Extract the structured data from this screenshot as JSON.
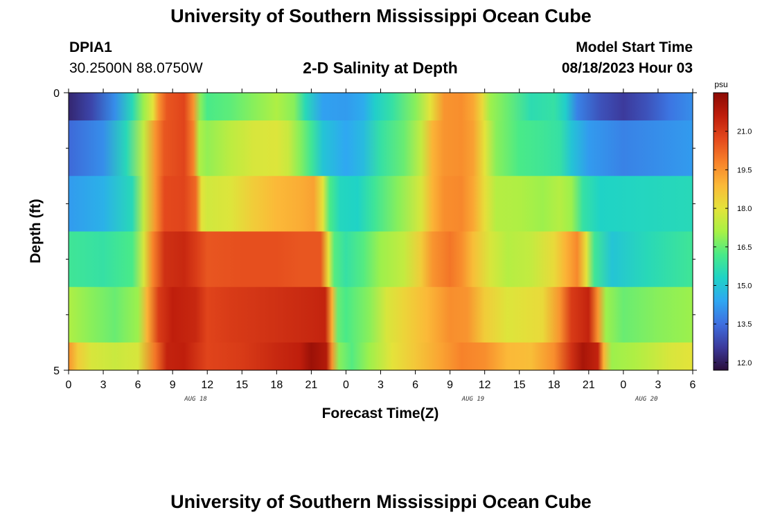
{
  "page": {
    "title": "University of Southern Mississippi Ocean Cube",
    "station_id": "DPIA1",
    "station_coords": "30.2500N  88.0750W",
    "plot_title": "2-D Salinity at Depth",
    "model_start_label": "Model Start Time",
    "model_start_value": "08/18/2023 Hour 03",
    "footer_title": "University of Southern Mississippi Ocean Cube"
  },
  "chart_data": {
    "type": "heatmap",
    "title": "2-D Salinity at Depth",
    "xlabel": "Forecast Time(Z)",
    "ylabel": "Depth (ft)",
    "colorbar_label": "psu",
    "colorbar_ticks": [
      "12.0",
      "13.5",
      "15.0",
      "16.5",
      "18.0",
      "19.5",
      "21.0"
    ],
    "colorbar_range": [
      11.7,
      22.5
    ],
    "x_tick_labels": [
      "0",
      "3",
      "6",
      "9",
      "12",
      "15",
      "18",
      "21",
      "0",
      "3",
      "6",
      "9",
      "12",
      "15",
      "18",
      "21",
      "0",
      "3",
      "6"
    ],
    "date_labels": [
      {
        "text": "AUG 18",
        "at_hour": 11
      },
      {
        "text": "AUG 19",
        "at_hour": 35
      },
      {
        "text": "AUG 20",
        "at_hour": 50
      }
    ],
    "x_range_hours": [
      0,
      54
    ],
    "y_tick_labels": [
      {
        "value": 0,
        "label": "0"
      },
      {
        "value": 5,
        "label": "5"
      }
    ],
    "y_minor_ticks": [
      1,
      2,
      3,
      4
    ],
    "y_range": [
      0,
      5
    ],
    "color_stops": [
      "#2a0e3a",
      "#3c3a9c",
      "#3e6fe0",
      "#2fa7f2",
      "#1fd3c6",
      "#49ea88",
      "#a8f145",
      "#e4e33a",
      "#fbb938",
      "#f7822a",
      "#e4491d",
      "#bf1e0c",
      "#8b0a04"
    ],
    "layers": [
      {
        "depth_top": 0.0,
        "depth_bottom": 0.5,
        "profile": [
          [
            0,
            12.2
          ],
          [
            2,
            12.8
          ],
          [
            4,
            14.0
          ],
          [
            5.5,
            15.5
          ],
          [
            6.5,
            17.0
          ],
          [
            7.3,
            18.0
          ],
          [
            7.8,
            19.5
          ],
          [
            8.5,
            20.5
          ],
          [
            10,
            20.8
          ],
          [
            10.8,
            19.5
          ],
          [
            11.4,
            16.8
          ],
          [
            12,
            16.2
          ],
          [
            14,
            16.4
          ],
          [
            16,
            16.8
          ],
          [
            18,
            17.2
          ],
          [
            19.5,
            16.8
          ],
          [
            20.5,
            15.5
          ],
          [
            22,
            14.3
          ],
          [
            24,
            14.2
          ],
          [
            25.5,
            14.5
          ],
          [
            26.5,
            15.2
          ],
          [
            28,
            15.8
          ],
          [
            30,
            16.8
          ],
          [
            31.3,
            18.0
          ],
          [
            32.5,
            19.5
          ],
          [
            34,
            19.6
          ],
          [
            35,
            19.2
          ],
          [
            35.8,
            18.2
          ],
          [
            36.5,
            17.0
          ],
          [
            38,
            16.5
          ],
          [
            40,
            15.6
          ],
          [
            42,
            15.8
          ],
          [
            43,
            15.2
          ],
          [
            44,
            13.8
          ],
          [
            46,
            13.0
          ],
          [
            48,
            12.6
          ],
          [
            50,
            13.0
          ],
          [
            52,
            13.6
          ],
          [
            54,
            14.0
          ]
        ]
      },
      {
        "depth_top": 0.5,
        "depth_bottom": 1.5,
        "profile": [
          [
            0,
            13.4
          ],
          [
            3,
            14.0
          ],
          [
            5,
            15.5
          ],
          [
            6.5,
            17.5
          ],
          [
            7.5,
            19.5
          ],
          [
            8.3,
            20.5
          ],
          [
            10,
            20.8
          ],
          [
            10.8,
            19.8
          ],
          [
            11.3,
            17.2
          ],
          [
            12,
            16.9
          ],
          [
            14,
            17.4
          ],
          [
            16,
            17.8
          ],
          [
            18,
            17.9
          ],
          [
            19,
            17.6
          ],
          [
            20,
            16.8
          ],
          [
            21,
            16.0
          ],
          [
            22,
            15.0
          ],
          [
            24,
            14.4
          ],
          [
            25.5,
            14.8
          ],
          [
            27,
            15.8
          ],
          [
            29,
            16.5
          ],
          [
            30.5,
            17.5
          ],
          [
            31.5,
            19.0
          ],
          [
            32.5,
            19.5
          ],
          [
            34,
            19.6
          ],
          [
            35,
            19.3
          ],
          [
            36,
            18.0
          ],
          [
            37,
            16.8
          ],
          [
            39,
            16.2
          ],
          [
            41,
            16.0
          ],
          [
            42.5,
            15.8
          ],
          [
            43.5,
            15.0
          ],
          [
            45,
            14.2
          ],
          [
            48,
            13.8
          ],
          [
            51,
            14.0
          ],
          [
            54,
            14.2
          ]
        ]
      },
      {
        "depth_top": 1.5,
        "depth_bottom": 2.5,
        "profile": [
          [
            0,
            14.2
          ],
          [
            3,
            14.6
          ],
          [
            5.5,
            15.5
          ],
          [
            6.5,
            17.5
          ],
          [
            7.5,
            19.5
          ],
          [
            8.3,
            20.7
          ],
          [
            10,
            20.8
          ],
          [
            11,
            20.2
          ],
          [
            11.5,
            18.0
          ],
          [
            12,
            17.7
          ],
          [
            14,
            17.9
          ],
          [
            16,
            18.5
          ],
          [
            18,
            18.9
          ],
          [
            20,
            19.1
          ],
          [
            21.2,
            19.3
          ],
          [
            22,
            18.0
          ],
          [
            22.6,
            16.2
          ],
          [
            23.5,
            15.4
          ],
          [
            25,
            15.3
          ],
          [
            26.5,
            16.0
          ],
          [
            28.5,
            16.8
          ],
          [
            30.5,
            17.8
          ],
          [
            31.5,
            19.0
          ],
          [
            32.5,
            19.6
          ],
          [
            34,
            19.7
          ],
          [
            35,
            19.2
          ],
          [
            36,
            18.1
          ],
          [
            37,
            17.3
          ],
          [
            39,
            17.2
          ],
          [
            41,
            17.0
          ],
          [
            42.5,
            17.3
          ],
          [
            43.5,
            17.0
          ],
          [
            44.5,
            15.8
          ],
          [
            46,
            15.3
          ],
          [
            50,
            15.4
          ],
          [
            54,
            15.5
          ]
        ]
      },
      {
        "depth_top": 2.5,
        "depth_bottom": 3.5,
        "profile": [
          [
            0,
            16.0
          ],
          [
            3,
            15.8
          ],
          [
            5.5,
            16.2
          ],
          [
            6.5,
            17.8
          ],
          [
            7.3,
            19.8
          ],
          [
            8.3,
            21.2
          ],
          [
            10,
            21.4
          ],
          [
            11,
            21.0
          ],
          [
            12,
            20.5
          ],
          [
            15,
            20.6
          ],
          [
            18,
            20.6
          ],
          [
            20,
            20.5
          ],
          [
            21.8,
            20.5
          ],
          [
            22.5,
            18.0
          ],
          [
            23,
            16.3
          ],
          [
            24,
            15.8
          ],
          [
            25.5,
            16.3
          ],
          [
            27,
            17.0
          ],
          [
            29,
            17.5
          ],
          [
            30.5,
            18.5
          ],
          [
            31.5,
            19.5
          ],
          [
            33,
            20.0
          ],
          [
            34,
            19.6
          ],
          [
            35,
            18.8
          ],
          [
            36.5,
            17.8
          ],
          [
            38,
            17.3
          ],
          [
            40,
            17.5
          ],
          [
            42,
            18.2
          ],
          [
            43,
            19.0
          ],
          [
            44,
            19.7
          ],
          [
            44.8,
            18.0
          ],
          [
            45.5,
            16.0
          ],
          [
            47,
            15.0
          ],
          [
            50,
            15.5
          ],
          [
            54,
            16.0
          ]
        ]
      },
      {
        "depth_top": 3.5,
        "depth_bottom": 4.5,
        "profile": [
          [
            0,
            17.2
          ],
          [
            2,
            16.8
          ],
          [
            4,
            16.5
          ],
          [
            6,
            17.0
          ],
          [
            6.8,
            19.0
          ],
          [
            7.8,
            21.0
          ],
          [
            9,
            21.6
          ],
          [
            11,
            21.4
          ],
          [
            12,
            20.8
          ],
          [
            14,
            21.0
          ],
          [
            18,
            21.2
          ],
          [
            21,
            21.4
          ],
          [
            22.2,
            21.5
          ],
          [
            22.8,
            19.0
          ],
          [
            23.3,
            16.5
          ],
          [
            24,
            16.2
          ],
          [
            26,
            16.8
          ],
          [
            27.5,
            17.8
          ],
          [
            29,
            18.3
          ],
          [
            31,
            18.9
          ],
          [
            33,
            19.6
          ],
          [
            34.5,
            19.5
          ],
          [
            36,
            18.5
          ],
          [
            38,
            17.9
          ],
          [
            41,
            18.2
          ],
          [
            42.5,
            19.5
          ],
          [
            43.5,
            21.0
          ],
          [
            45,
            21.5
          ],
          [
            45.8,
            19.5
          ],
          [
            46.5,
            17.0
          ],
          [
            48,
            16.5
          ],
          [
            51,
            16.8
          ],
          [
            54,
            17.0
          ]
        ]
      },
      {
        "depth_top": 4.5,
        "depth_bottom": 5.0,
        "profile": [
          [
            0,
            19.5
          ],
          [
            0.8,
            18.5
          ],
          [
            2,
            17.8
          ],
          [
            4,
            17.6
          ],
          [
            6,
            17.8
          ],
          [
            7.5,
            20.0
          ],
          [
            8.5,
            21.5
          ],
          [
            10,
            21.6
          ],
          [
            12,
            20.8
          ],
          [
            15,
            21.0
          ],
          [
            18,
            21.4
          ],
          [
            20,
            21.6
          ],
          [
            21,
            22.2
          ],
          [
            22.3,
            21.8
          ],
          [
            22.8,
            19.5
          ],
          [
            23.4,
            16.8
          ],
          [
            24.5,
            16.3
          ],
          [
            26,
            17.0
          ],
          [
            28,
            18.0
          ],
          [
            30,
            18.6
          ],
          [
            32,
            19.2
          ],
          [
            34,
            19.8
          ],
          [
            36,
            19.6
          ],
          [
            38,
            18.9
          ],
          [
            40,
            18.8
          ],
          [
            42,
            19.6
          ],
          [
            43.5,
            21.2
          ],
          [
            44.5,
            22.0
          ],
          [
            45.8,
            21.5
          ],
          [
            46.3,
            19.0
          ],
          [
            47,
            17.0
          ],
          [
            49,
            17.2
          ],
          [
            52,
            17.8
          ],
          [
            54,
            18.0
          ]
        ]
      }
    ]
  }
}
